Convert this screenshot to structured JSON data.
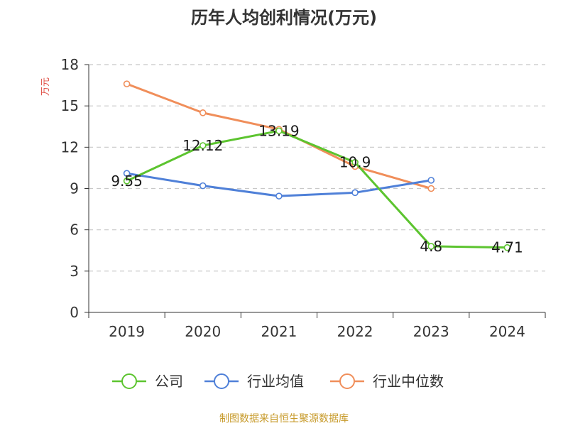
{
  "chart_data": {
    "type": "line",
    "title": "历年人均创利情况(万元)",
    "ylabel": "万元",
    "categories": [
      "2019",
      "2020",
      "2021",
      "2022",
      "2023",
      "2024"
    ],
    "yticks": [
      0,
      3,
      6,
      9,
      12,
      15,
      18
    ],
    "ylim": [
      0,
      18
    ],
    "grid": true,
    "legend_position": "bottom",
    "series": [
      {
        "name": "公司",
        "color": "#5cc42f",
        "values": [
          9.55,
          12.12,
          13.19,
          10.9,
          4.8,
          4.71
        ],
        "labels": [
          "9.55",
          "12.12",
          "13.19",
          "10.9",
          "4.8",
          "4.71"
        ]
      },
      {
        "name": "行业均值",
        "color": "#4f80d8",
        "values": [
          10.1,
          9.2,
          8.45,
          8.7,
          9.6,
          null
        ]
      },
      {
        "name": "行业中位数",
        "color": "#f08e5a",
        "values": [
          16.6,
          14.5,
          13.3,
          10.6,
          9.0,
          null
        ]
      }
    ]
  },
  "source": "制图数据来自恒生聚源数据库"
}
